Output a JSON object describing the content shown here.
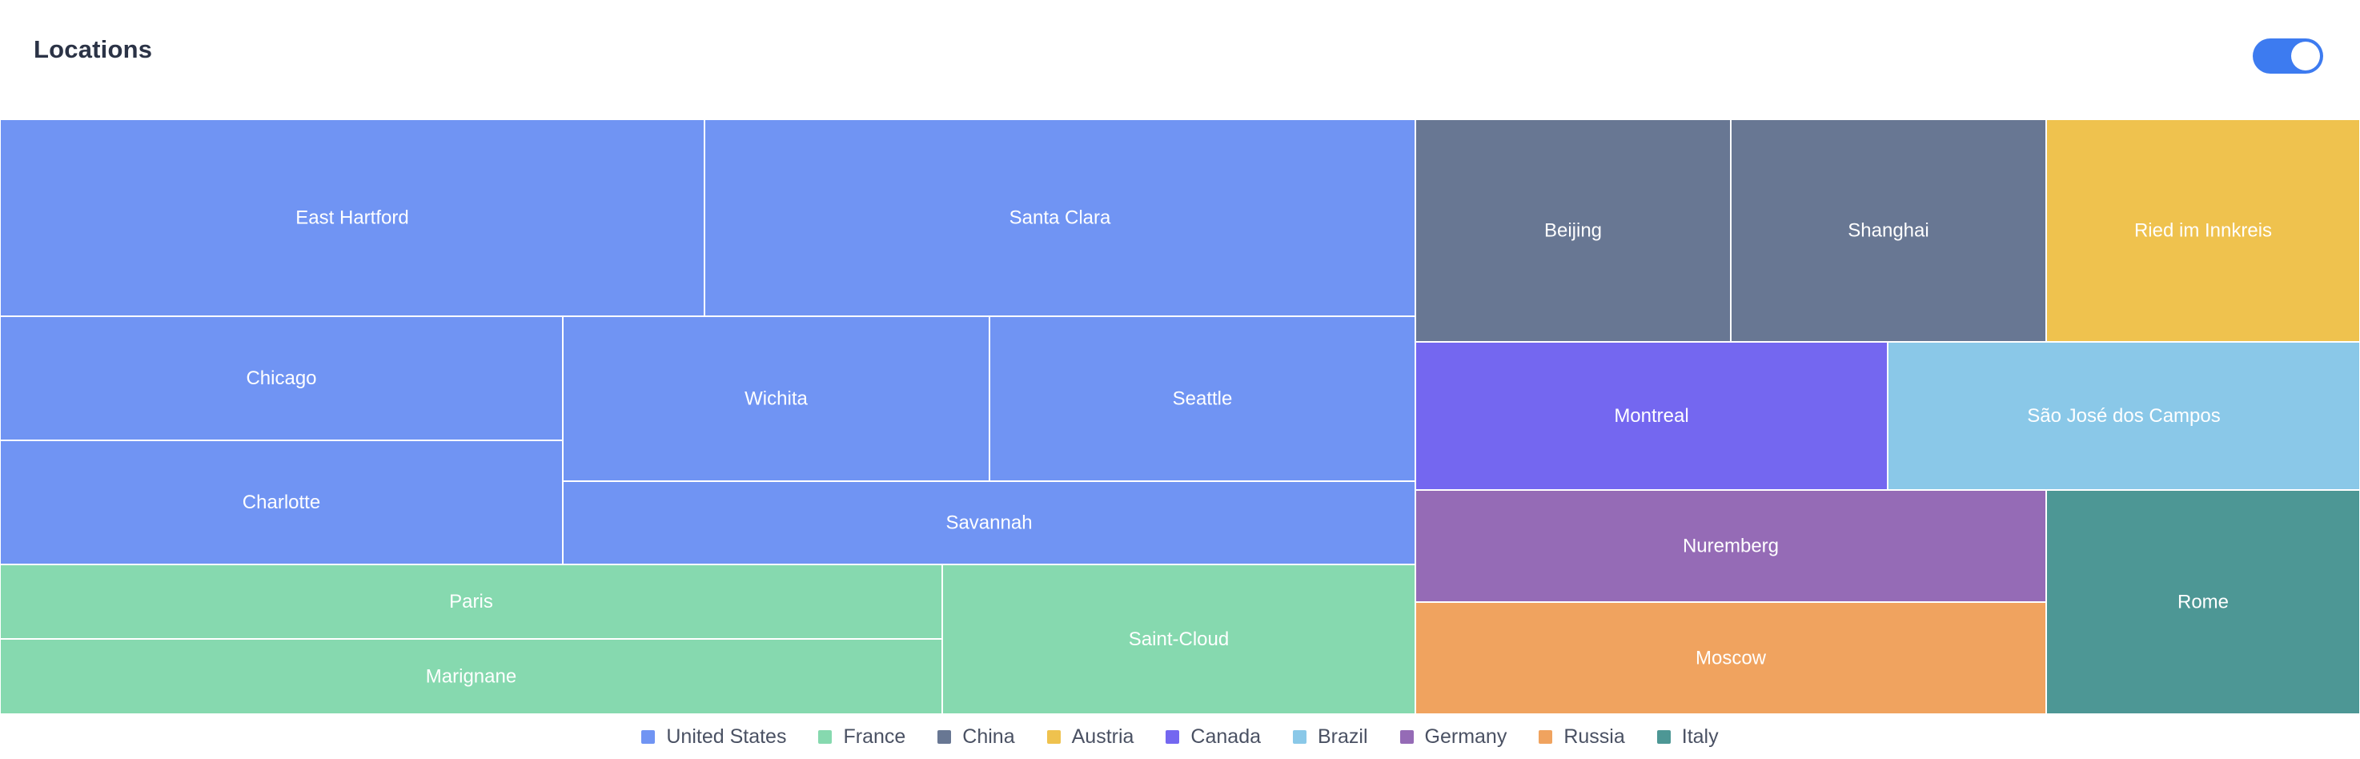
{
  "header": {
    "title": "Locations",
    "toggle_on": true
  },
  "chart_data": {
    "type": "treemap",
    "title": "Locations",
    "legend_position": "bottom-center",
    "groups": [
      {
        "name": "United States",
        "color": "#7094f3",
        "items": [
          {
            "name": "East Hartford",
            "value": 6
          },
          {
            "name": "Santa Clara",
            "value": 6
          },
          {
            "name": "Chicago",
            "value": 3
          },
          {
            "name": "Charlotte",
            "value": 3
          },
          {
            "name": "Wichita",
            "value": 3
          },
          {
            "name": "Seattle",
            "value": 3
          },
          {
            "name": "Savannah",
            "value": 3
          }
        ]
      },
      {
        "name": "France",
        "color": "#86d9af",
        "items": [
          {
            "name": "Paris",
            "value": 3
          },
          {
            "name": "Marignane",
            "value": 3
          },
          {
            "name": "Saint-Cloud",
            "value": 3
          }
        ]
      },
      {
        "name": "China",
        "color": "#687793",
        "items": [
          {
            "name": "Beijing",
            "value": 3
          },
          {
            "name": "Shanghai",
            "value": 3
          }
        ]
      },
      {
        "name": "Austria",
        "color": "#efc24e",
        "items": [
          {
            "name": "Ried im Innkreis",
            "value": 3
          }
        ]
      },
      {
        "name": "Canada",
        "color": "#7467f0",
        "items": [
          {
            "name": "Montreal",
            "value": 3
          }
        ]
      },
      {
        "name": "Brazil",
        "color": "#8ac8e8",
        "items": [
          {
            "name": "São José dos Campos",
            "value": 3
          }
        ]
      },
      {
        "name": "Germany",
        "color": "#956bb6",
        "items": [
          {
            "name": "Nuremberg",
            "value": 2
          }
        ]
      },
      {
        "name": "Russia",
        "color": "#f0a35f",
        "items": [
          {
            "name": "Moscow",
            "value": 2
          }
        ]
      },
      {
        "name": "Italy",
        "color": "#4d9795",
        "items": [
          {
            "name": "Rome",
            "value": 3
          }
        ]
      }
    ]
  }
}
